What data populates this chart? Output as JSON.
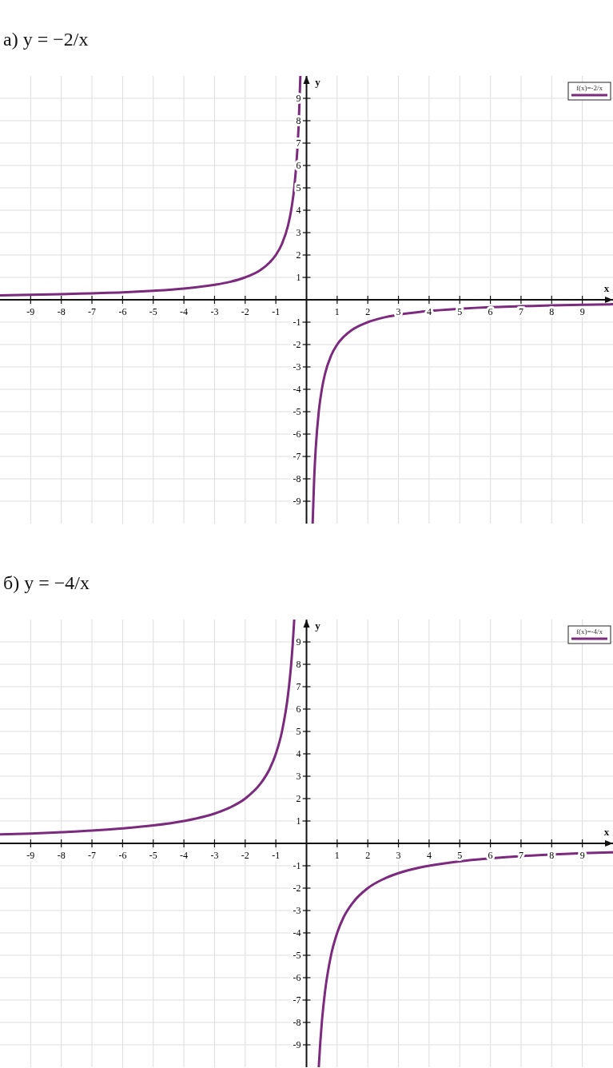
{
  "chart_data": [
    {
      "type": "line",
      "title": "а) y = −2/x",
      "xlabel": "x",
      "ylabel": "y",
      "xlim": [
        -10,
        10
      ],
      "ylim": [
        -10,
        10
      ],
      "xticks": [
        -9,
        -8,
        -7,
        -6,
        -5,
        -4,
        -3,
        -2,
        -1,
        1,
        2,
        3,
        4,
        5,
        6,
        7,
        8,
        9
      ],
      "yticks": [
        -9,
        -8,
        -7,
        -6,
        -5,
        -4,
        -3,
        -2,
        -1,
        1,
        2,
        3,
        4,
        5,
        6,
        7,
        8,
        9
      ],
      "grid": true,
      "legend": "top right",
      "series": [
        {
          "name": "f(x)=-2/x",
          "color": "#7b2a7d",
          "x": [
            -10,
            -9,
            -8,
            -7,
            -6,
            -5,
            -4,
            -3,
            -2.5,
            -2,
            -1.5,
            -1.2,
            -1,
            -0.8,
            -0.6,
            -0.5,
            -0.4,
            -0.3,
            -0.25,
            -0.2,
            0,
            0.2,
            0.25,
            0.3,
            0.4,
            0.5,
            0.6,
            0.8,
            1,
            1.2,
            1.5,
            2,
            2.5,
            3,
            4,
            5,
            6,
            7,
            8,
            9,
            10
          ],
          "values": [
            0.2,
            0.22,
            0.25,
            0.29,
            0.33,
            0.4,
            0.5,
            0.67,
            0.8,
            1,
            1.33,
            1.67,
            2,
            2.5,
            3.33,
            4,
            5,
            6.67,
            8,
            10,
            null,
            -10,
            -8,
            -6.67,
            -5,
            -4,
            -3.33,
            -2.5,
            -2,
            -1.67,
            -1.33,
            -1,
            -0.8,
            -0.67,
            -0.5,
            -0.4,
            -0.33,
            -0.29,
            -0.25,
            -0.22,
            -0.2
          ]
        }
      ]
    },
    {
      "type": "line",
      "title": "б) y = −4/x",
      "xlabel": "x",
      "ylabel": "y",
      "xlim": [
        -10,
        10
      ],
      "ylim": [
        -10,
        10
      ],
      "xticks": [
        -9,
        -8,
        -7,
        -6,
        -5,
        -4,
        -3,
        -2,
        -1,
        1,
        2,
        3,
        4,
        5,
        6,
        7,
        8,
        9
      ],
      "yticks": [
        -9,
        -8,
        -7,
        -6,
        -5,
        -4,
        -3,
        -2,
        -1,
        1,
        2,
        3,
        4,
        5,
        6,
        7,
        8,
        9
      ],
      "grid": true,
      "legend": "top right",
      "series": [
        {
          "name": "f(x)=-4/x",
          "color": "#7b2a7d",
          "x": [
            -10,
            -9,
            -8,
            -7,
            -6,
            -5,
            -4,
            -3,
            -2.5,
            -2,
            -1.5,
            -1.2,
            -1,
            -0.8,
            -0.6,
            -0.5,
            -0.45,
            -0.4,
            0,
            0.4,
            0.45,
            0.5,
            0.6,
            0.8,
            1,
            1.2,
            1.5,
            2,
            2.5,
            3,
            4,
            5,
            6,
            7,
            8,
            9,
            10
          ],
          "values": [
            0.4,
            0.44,
            0.5,
            0.57,
            0.67,
            0.8,
            1,
            1.33,
            1.6,
            2,
            2.67,
            3.33,
            4,
            5,
            6.67,
            8,
            8.89,
            10,
            null,
            -10,
            -8.89,
            -8,
            -6.67,
            -5,
            -4,
            -3.33,
            -2.67,
            -2,
            -1.6,
            -1.33,
            -1,
            -0.8,
            -0.67,
            -0.57,
            -0.5,
            -0.44,
            -0.4
          ]
        }
      ]
    }
  ]
}
